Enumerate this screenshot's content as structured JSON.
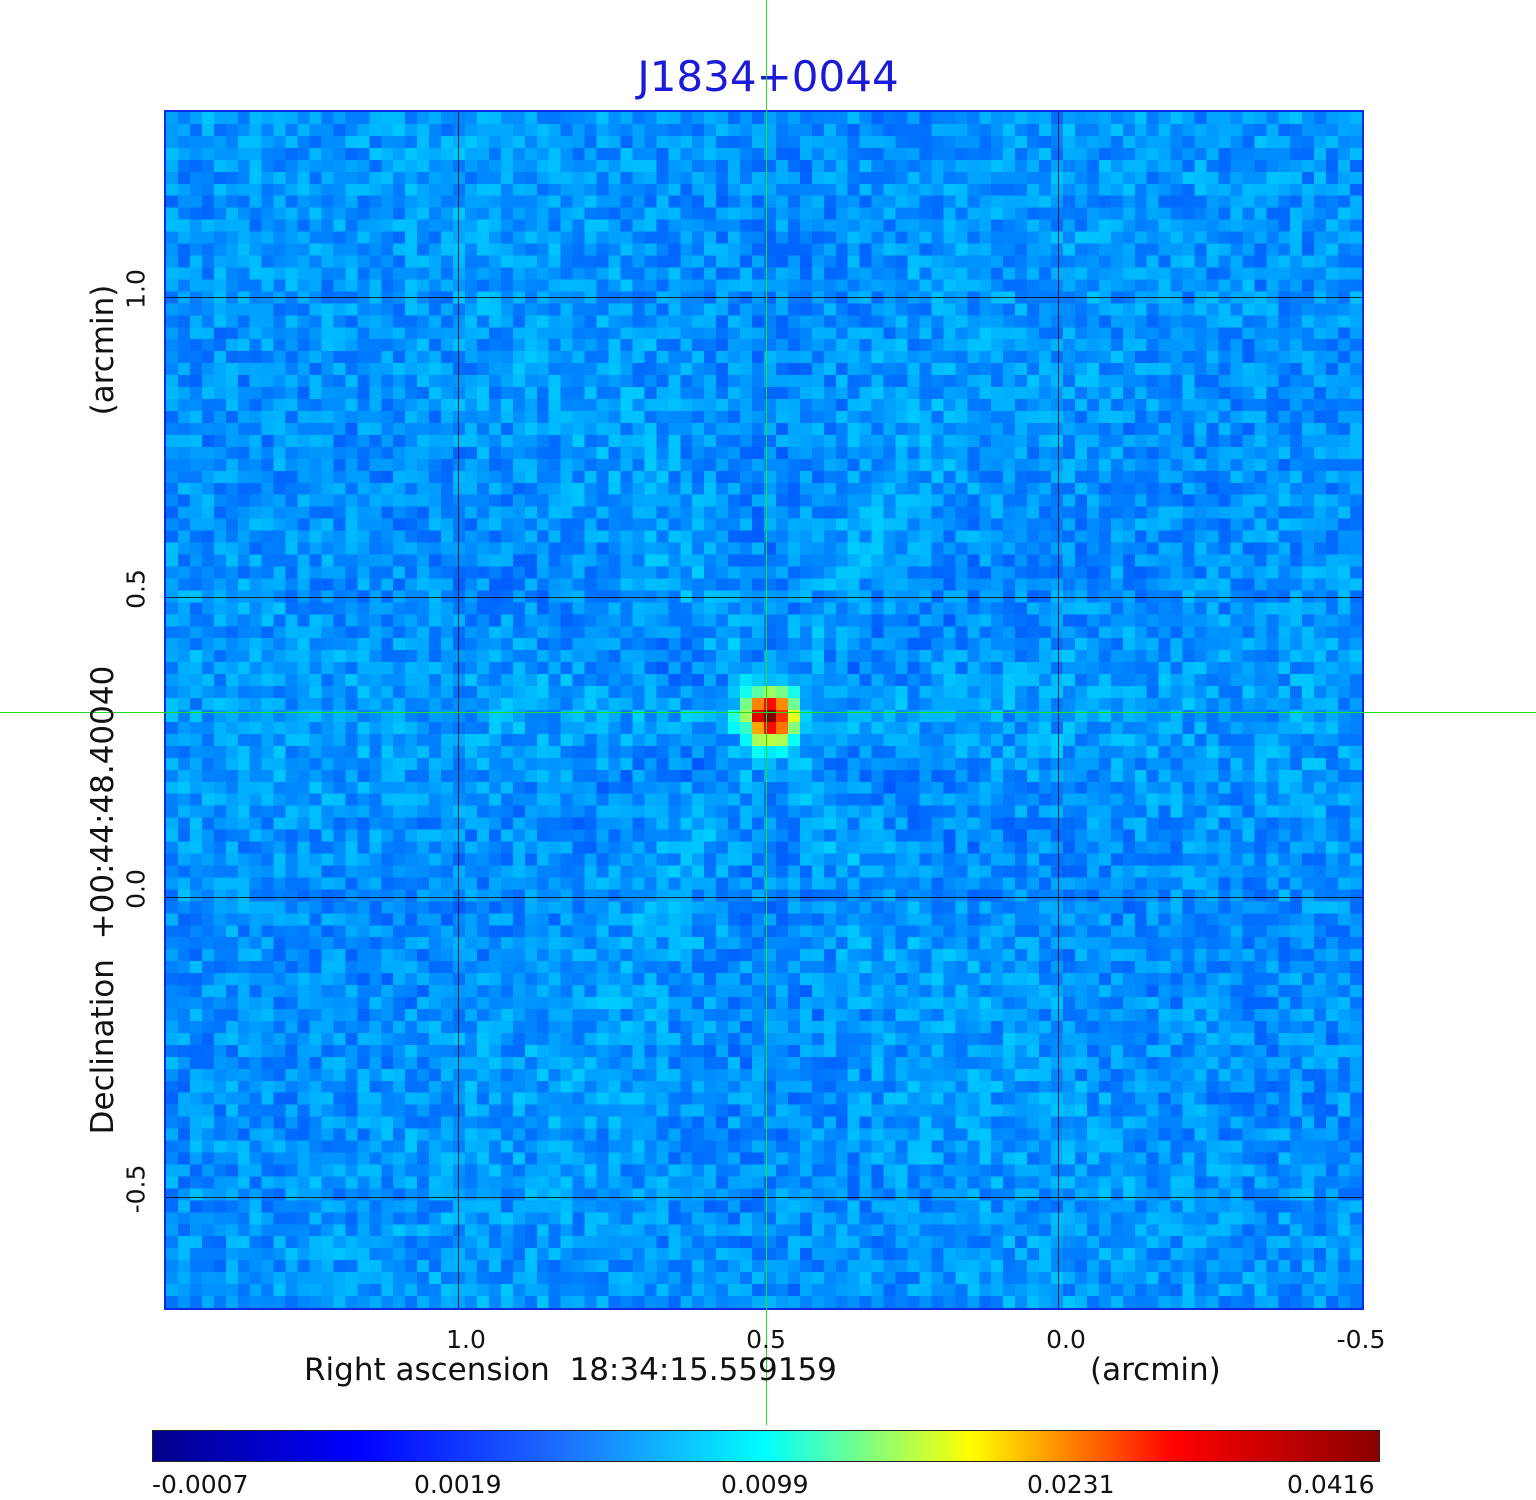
{
  "title": "J1834+0044",
  "x_axis": {
    "label": "Right ascension  18:34:15.559159",
    "unit": "(arcmin)",
    "ticks": [
      "1.0",
      "0.5",
      "0.0",
      "-0.5"
    ]
  },
  "y_axis": {
    "label": "Declination  +00:44:48.40040",
    "unit": "(arcmin)",
    "ticks": [
      "1.0",
      "0.5",
      "0.0",
      "-0.5"
    ]
  },
  "colorbar": {
    "ticks": [
      "-0.0007",
      "0.0019",
      "0.0099",
      "0.0231",
      "0.0416"
    ],
    "colors": [
      "#00008b",
      "#0000ff",
      "#1e6eff",
      "#00ffff",
      "#ffff00",
      "#ff0000",
      "#8b0000"
    ]
  },
  "image": {
    "background_color": "#1e3ef5",
    "source_peak_color": "#d01010",
    "crosshair_color": "#22dd22"
  }
}
